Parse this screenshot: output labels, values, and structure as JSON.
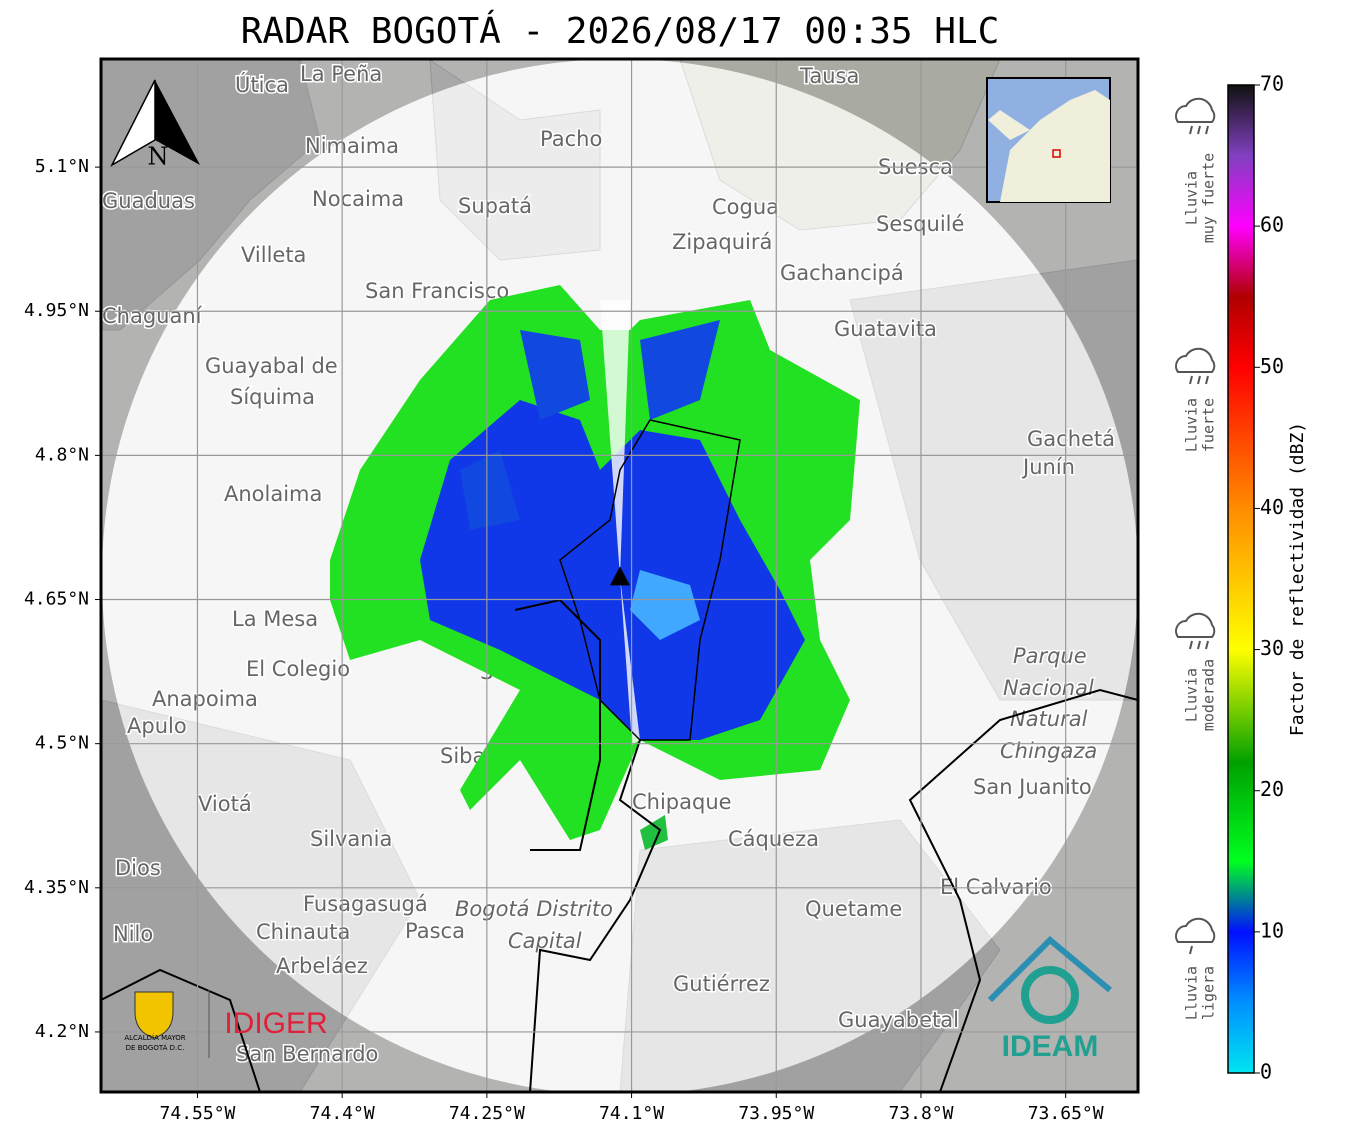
{
  "title": "RADAR BOGOTÁ - 2026/08/17 00:35 HLC",
  "map": {
    "xlim": [
      -74.65,
      -73.575
    ],
    "ylim": [
      4.1375,
      5.2125
    ],
    "xticks": [
      {
        "value": -74.55,
        "label": "74.55°W"
      },
      {
        "value": -74.4,
        "label": "74.4°W"
      },
      {
        "value": -74.25,
        "label": "74.25°W"
      },
      {
        "value": -74.1,
        "label": "74.1°W"
      },
      {
        "value": -73.95,
        "label": "73.95°W"
      },
      {
        "value": -73.8,
        "label": "73.8°W"
      },
      {
        "value": -73.65,
        "label": "73.65°W"
      }
    ],
    "yticks": [
      {
        "value": 5.1,
        "label": "5.1°N"
      },
      {
        "value": 4.95,
        "label": "4.95°N"
      },
      {
        "value": 4.8,
        "label": "4.8°N"
      },
      {
        "value": 4.65,
        "label": "4.65°N"
      },
      {
        "value": 4.5,
        "label": "4.5°N"
      },
      {
        "value": 4.35,
        "label": "4.35°N"
      },
      {
        "value": 4.2,
        "label": "4.2°N"
      }
    ],
    "grid": true,
    "radar_site": {
      "lon": -74.112,
      "lat": 4.673
    },
    "north": "N",
    "places": [
      "La Peña",
      "Útica",
      "Tausa",
      "Pacho",
      "Nimaima",
      "Suesca",
      "Guaduas",
      "Nocaima",
      "Supatá",
      "Cogua",
      "Sesquilé",
      "Zipaquirá",
      "Villeta",
      "Gachancipá",
      "San Francisco",
      "Chaguaní",
      "Guatavita",
      "Guayabal de",
      "Síquima",
      "Gachetá",
      "Junín",
      "Anolaima",
      "La Mesa",
      "El Colegio",
      "Soacha",
      "Anapoima",
      "Apulo",
      "Parque",
      "Nacional",
      "Natural",
      "Chingaza",
      "San Juanito",
      "Sibaté",
      "Viotá",
      "Chipaque",
      "Silvania",
      "Cáqueza",
      "Dios",
      "El Calvario",
      "Fusagasugá",
      "Bogotá Distrito",
      "Capital",
      "Quetame",
      "Nilo",
      "Chinauta",
      "Pasca",
      "Arbeláez",
      "Gutiérrez",
      "Guayabetal",
      "San Bernardo"
    ]
  },
  "logos": {
    "idiger": "IDIGER",
    "ideam": "IDEAM",
    "alcaldia": [
      "ALCALDÍA MAYOR",
      "DE BOGOTÁ D.C."
    ]
  },
  "colorbar": {
    "label": "Factor de reflectividad (dBZ)",
    "lim": [
      0,
      70
    ],
    "ticks": [
      0,
      10,
      20,
      30,
      40,
      50,
      60,
      70
    ],
    "stops": [
      {
        "value": 0,
        "color": "#00e5f0"
      },
      {
        "value": 5,
        "color": "#0090ff"
      },
      {
        "value": 10,
        "color": "#0010ff"
      },
      {
        "value": 15,
        "color": "#00ff20"
      },
      {
        "value": 22,
        "color": "#00a000"
      },
      {
        "value": 30,
        "color": "#ffff00"
      },
      {
        "value": 40,
        "color": "#ff8c00"
      },
      {
        "value": 50,
        "color": "#ff0000"
      },
      {
        "value": 55,
        "color": "#b00000"
      },
      {
        "value": 60,
        "color": "#ff00ff"
      },
      {
        "value": 65,
        "color": "#8040c0"
      },
      {
        "value": 70,
        "color": "#111111"
      }
    ]
  },
  "rain_legend": [
    {
      "lines": [
        "Lluvia",
        "muy fuerte"
      ]
    },
    {
      "lines": [
        "Lluvia",
        "fuerte"
      ]
    },
    {
      "lines": [
        "Lluvia",
        "moderada"
      ]
    },
    {
      "lines": [
        "Lluvia",
        "ligera"
      ]
    }
  ]
}
